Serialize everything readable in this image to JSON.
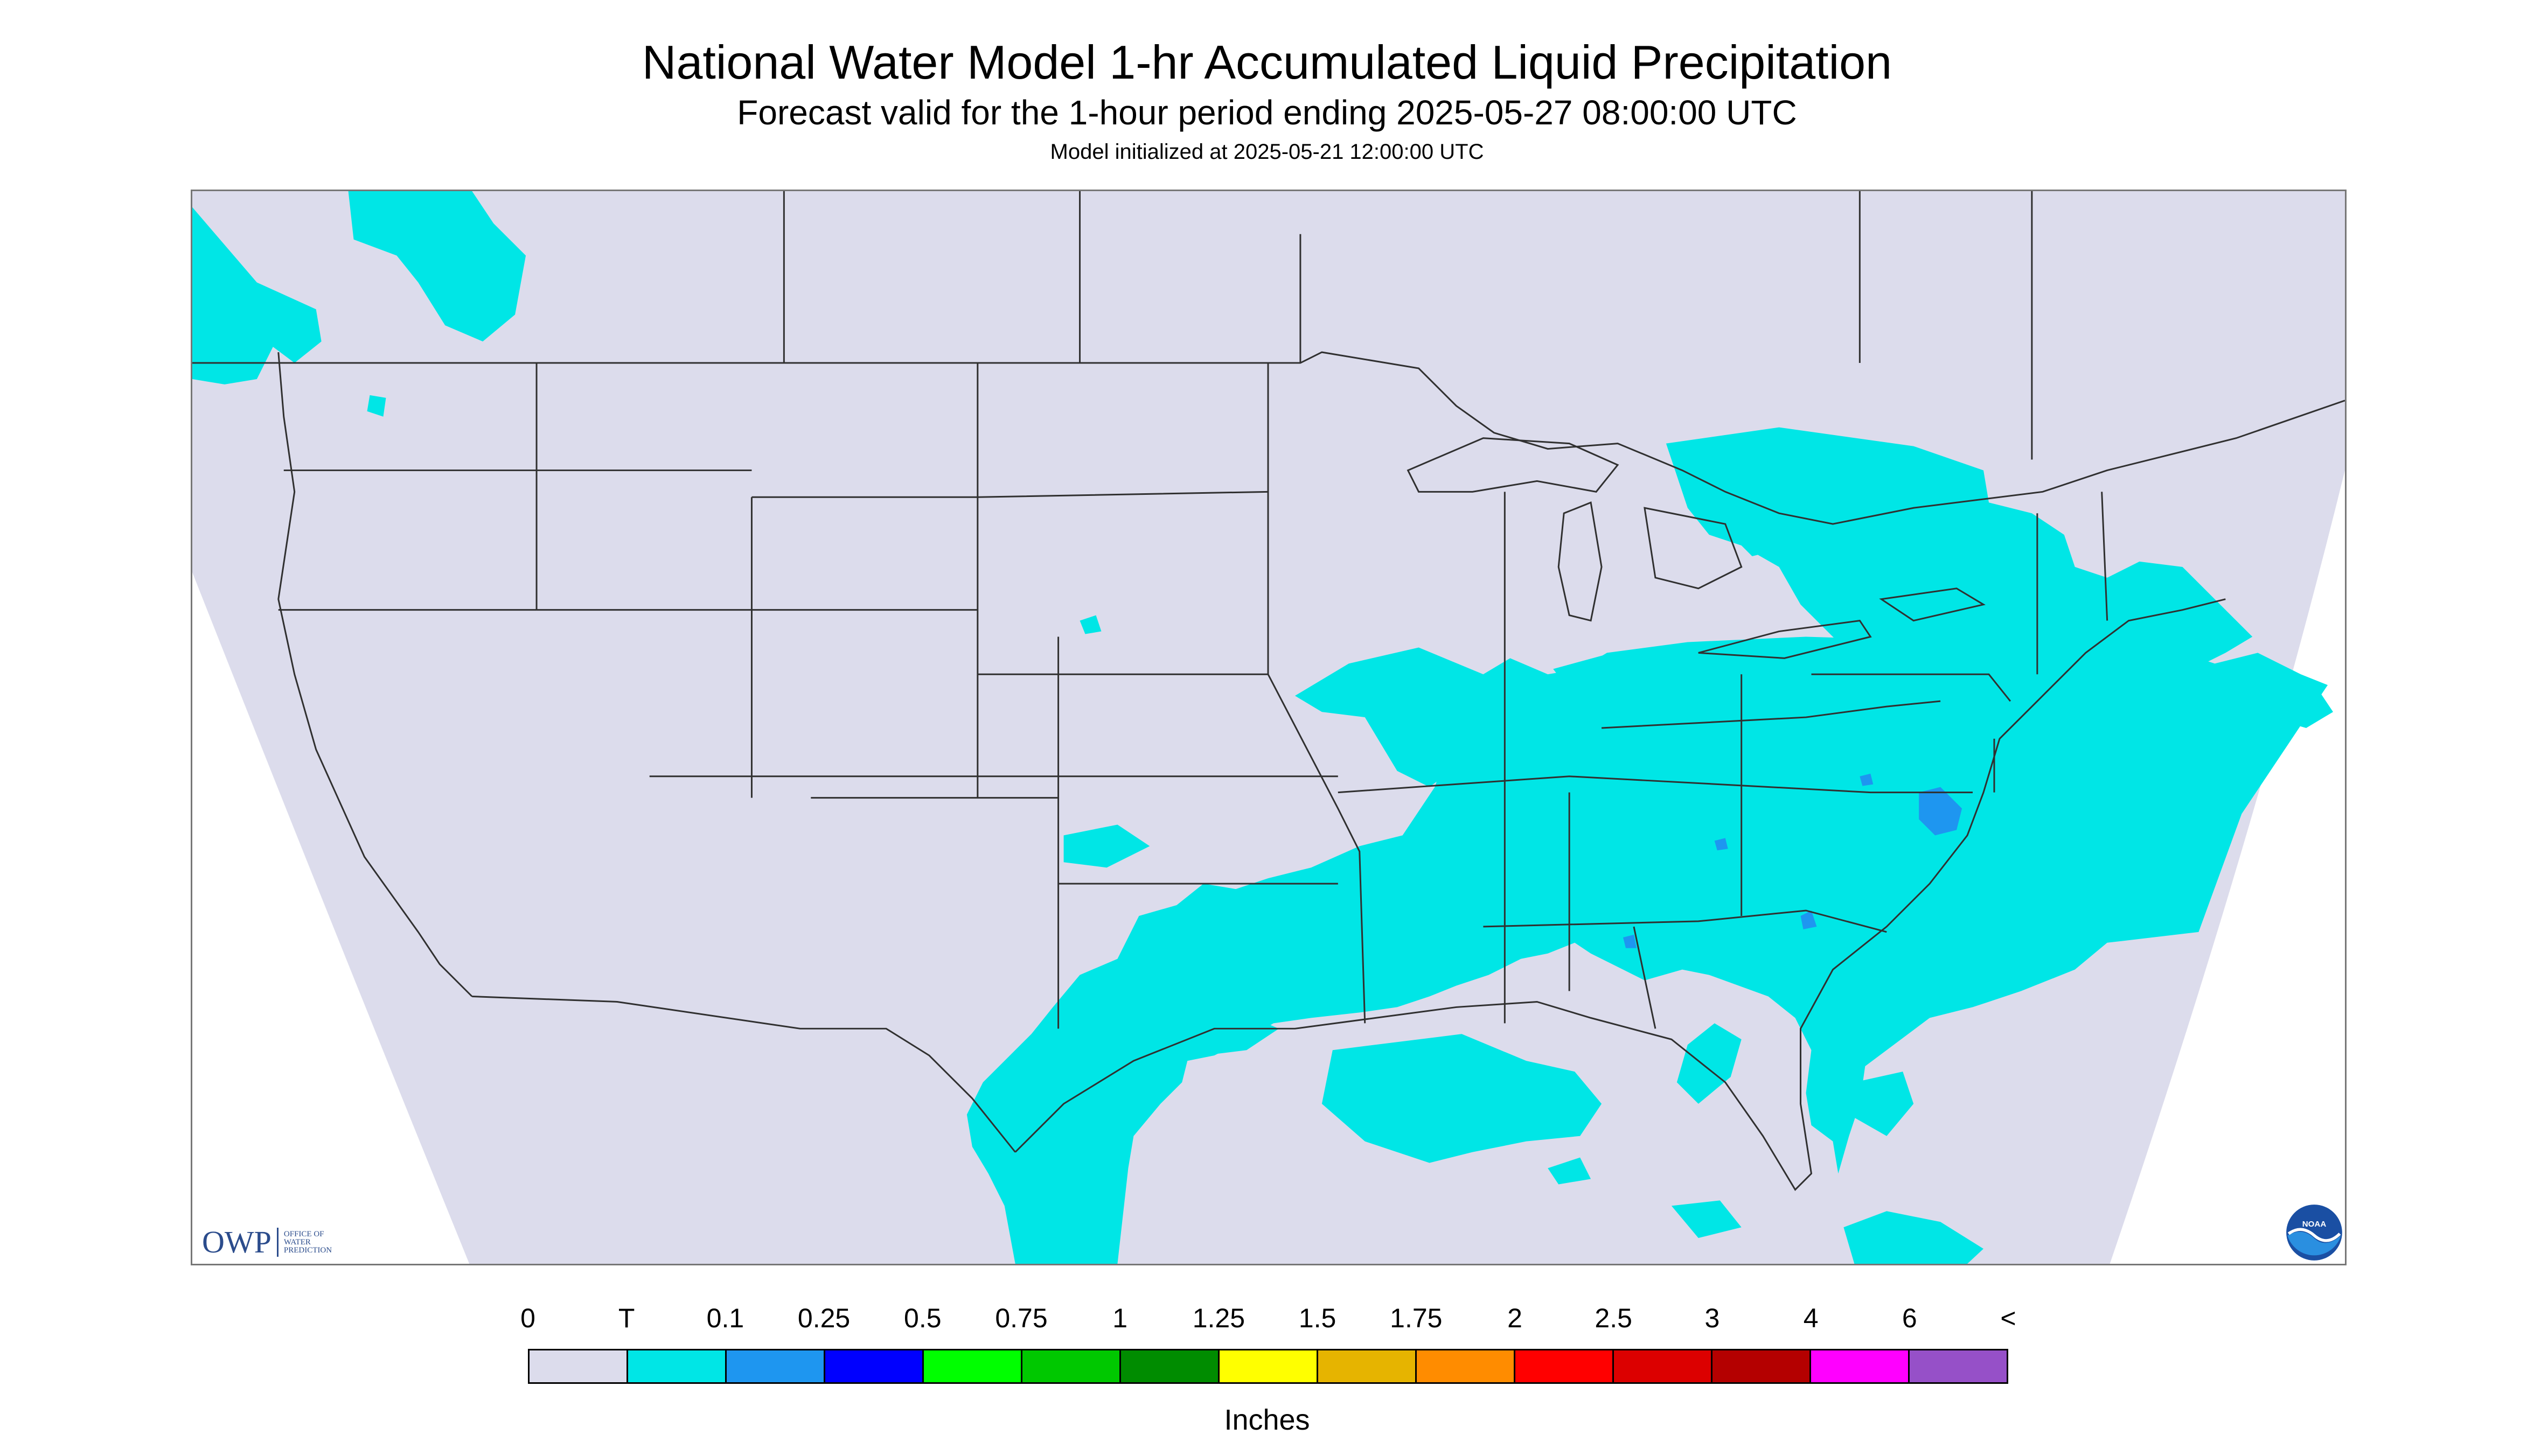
{
  "header": {
    "title": "National Water Model 1-hr Accumulated Liquid Precipitation",
    "subtitle": "Forecast valid for the 1-hour period ending 2025-05-27 08:00:00 UTC",
    "init": "Model initialized at 2025-05-21 12:00:00 UTC"
  },
  "map": {
    "background_color": "#dcdcec",
    "outside_color": "#ffffff",
    "precip_color": "#00e6e6",
    "heavier_precip_color": "#1e96f0",
    "boundary_color": "#303030",
    "precip_level_shown": "T (trace) to 0.1 in over Southeast, Mid-Atlantic, Ohio Valley, Gulf coast, Great Lakes and Pacific Northwest; 0.1-0.25 in spots in North Carolina and Virginia"
  },
  "logos": {
    "owp_text": "OWP",
    "owp_sub": "OFFICE OF WATER PREDICTION",
    "noaa_text": "NOAA"
  },
  "legend": {
    "labels": [
      "0",
      "T",
      "0.1",
      "0.25",
      "0.5",
      "0.75",
      "1",
      "1.25",
      "1.5",
      "1.75",
      "2",
      "2.5",
      "3",
      "4",
      "6",
      "<"
    ],
    "colors": [
      "#dcdcec",
      "#00e6e6",
      "#1e96f0",
      "#0000ff",
      "#00ff00",
      "#00c800",
      "#008c00",
      "#ffff00",
      "#e6b400",
      "#ff8c00",
      "#ff0000",
      "#dc0000",
      "#b40000",
      "#ff00ff",
      "#9650c8"
    ],
    "units": "Inches"
  }
}
